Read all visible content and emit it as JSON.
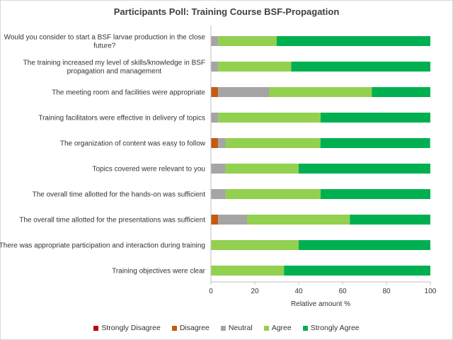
{
  "chart_data": {
    "type": "bar",
    "orientation": "horizontal",
    "stacked": true,
    "title": "Participants Poll: Training Course BSF-Propagation",
    "xlabel": "Relative amount %",
    "ylabel": "",
    "xlim": [
      0,
      100
    ],
    "xticks": [
      "0",
      "20",
      "40",
      "60",
      "80",
      "100"
    ],
    "grid": false,
    "legend_position": "bottom",
    "categories": [
      [
        "Would you consider to start a BSF larvae production in the close",
        "future?"
      ],
      [
        "The training increased my level of skills/knowledge in BSF",
        "propagation and management"
      ],
      [
        "The   meeting room and facilities were appropriate"
      ],
      [
        "Training facilitators were effective in delivery of topics"
      ],
      [
        "The organization of content was easy to follow"
      ],
      [
        "Topics covered were relevant to you"
      ],
      [
        "The overall time allotted for the hands-on was sufficient"
      ],
      [
        "The overall time allotted for the presentations was sufficient"
      ],
      [
        "There was appropriate participation and interaction during training"
      ],
      [
        "Training objectives were clear"
      ]
    ],
    "series": [
      {
        "name": "Strongly Disagree",
        "color": "#c00000",
        "values": [
          0,
          0,
          0,
          0,
          0,
          0,
          0,
          0,
          0,
          0
        ]
      },
      {
        "name": "Disagree",
        "color": "#c55a11",
        "values": [
          0,
          0,
          3.3,
          0,
          3.3,
          0,
          0,
          3.3,
          0,
          0
        ]
      },
      {
        "name": "Neutral",
        "color": "#a5a5a5",
        "values": [
          3.3,
          3.3,
          23.3,
          3.3,
          3.3,
          6.7,
          6.7,
          13.3,
          0,
          0
        ]
      },
      {
        "name": "Agree",
        "color": "#92d050",
        "values": [
          26.7,
          33.3,
          46.7,
          46.7,
          43.3,
          33.3,
          43.3,
          46.7,
          40,
          33.3
        ]
      },
      {
        "name": "Strongly Agree",
        "color": "#00b050",
        "values": [
          70,
          63.4,
          26.7,
          50,
          50,
          60,
          50,
          36.7,
          60,
          66.7
        ]
      }
    ]
  }
}
